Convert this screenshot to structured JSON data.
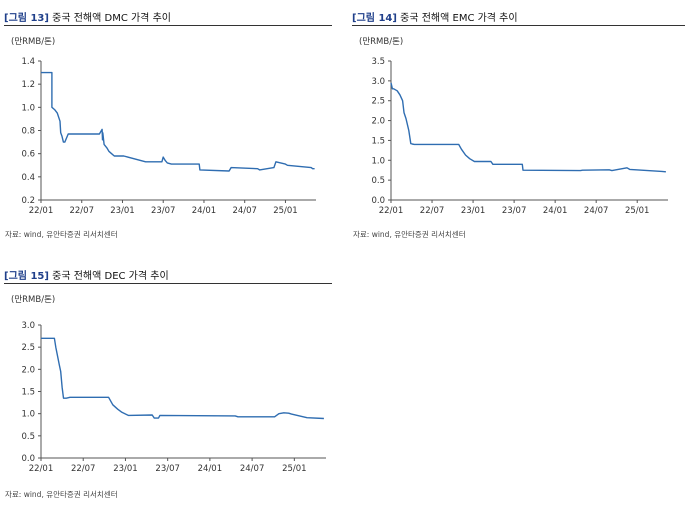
{
  "colors": {
    "line": "#2f6db1",
    "axis": "#555555",
    "title_tag": "#1f3f8a"
  },
  "chart_data": [
    {
      "type": "line",
      "fig_tag": "[그림 13]",
      "title": "중국 전해액 DMC 가격 추이",
      "unit": "(만RMB/톤)",
      "source": "자료: wind, 유안타증권 리서치센터",
      "x_ticks": [
        "22/01",
        "22/07",
        "23/01",
        "23/07",
        "24/01",
        "24/07",
        "25/01"
      ],
      "y_ticks": [
        "0.2",
        "0.4",
        "0.6",
        "0.8",
        "1.0",
        "1.2",
        "1.4"
      ],
      "ylim": [
        0.2,
        1.4
      ],
      "xlim": [
        0,
        40.5
      ],
      "grid": false,
      "series": [
        {
          "x": [
            0,
            1.6,
            1.6,
            2.0,
            2.4,
            2.8,
            2.9,
            3.1,
            3.3,
            3.5,
            4.0,
            4.6,
            8.6,
            9.0,
            9.05,
            9.1,
            9.3,
            9.7,
            10.0,
            10.4,
            10.8,
            11.3,
            12.2,
            15.4,
            15.5,
            17.8,
            18.0,
            18.3,
            18.6,
            19.2,
            23.3,
            23.4,
            27.7,
            28.0,
            31.9,
            32.2,
            34.3,
            34.6,
            36.0,
            36.3,
            39.8,
            40.0,
            40.3
          ],
          "y": [
            1.3,
            1.3,
            1.0,
            0.98,
            0.95,
            0.88,
            0.78,
            0.75,
            0.7,
            0.7,
            0.77,
            0.77,
            0.77,
            0.81,
            0.72,
            0.78,
            0.68,
            0.65,
            0.62,
            0.6,
            0.58,
            0.58,
            0.58,
            0.53,
            0.53,
            0.53,
            0.57,
            0.54,
            0.52,
            0.51,
            0.51,
            0.46,
            0.45,
            0.48,
            0.47,
            0.46,
            0.48,
            0.53,
            0.51,
            0.5,
            0.48,
            0.47,
            0.47
          ]
        }
      ]
    },
    {
      "type": "line",
      "fig_tag": "[그림 14]",
      "title": "중국 전해액 EMC 가격 추이",
      "unit": "(만RMB/톤)",
      "source": "자료: wind, 유안타증권 리서치센터",
      "x_ticks": [
        "22/01",
        "22/07",
        "23/01",
        "23/07",
        "24/01",
        "24/07",
        "25/01"
      ],
      "y_ticks": [
        "0.0",
        "0.5",
        "1.0",
        "1.5",
        "2.0",
        "2.5",
        "3.0",
        "3.5"
      ],
      "ylim": [
        0.0,
        3.5
      ],
      "xlim": [
        0,
        40.5
      ],
      "grid": false,
      "series": [
        {
          "x": [
            0,
            0.2,
            0.4,
            0.9,
            1.3,
            1.7,
            1.9,
            2.2,
            2.6,
            2.9,
            3.1,
            3.4,
            9.9,
            10.3,
            10.9,
            11.5,
            12.2,
            14.6,
            14.9,
            19.2,
            19.3,
            27.7,
            28.0,
            31.9,
            32.3,
            34.5,
            34.9,
            35.8,
            39.6,
            40.2
          ],
          "y": [
            2.95,
            2.8,
            2.8,
            2.75,
            2.65,
            2.5,
            2.2,
            2.05,
            1.75,
            1.42,
            1.41,
            1.4,
            1.4,
            1.28,
            1.13,
            1.04,
            0.97,
            0.97,
            0.9,
            0.9,
            0.75,
            0.74,
            0.75,
            0.76,
            0.74,
            0.81,
            0.77,
            0.76,
            0.72,
            0.71
          ]
        }
      ]
    },
    {
      "type": "line",
      "fig_tag": "[그림 15]",
      "title": "중국 전해액 DEC 가격 추이",
      "unit": "(만RMB/톤)",
      "source": "자료: wind, 유안타증권 리서치센터",
      "x_ticks": [
        "22/01",
        "22/07",
        "23/01",
        "23/07",
        "24/01",
        "24/07",
        "25/01"
      ],
      "y_ticks": [
        "0.0",
        "0.5",
        "1.0",
        "1.5",
        "2.0",
        "2.5",
        "3.0"
      ],
      "ylim": [
        0.0,
        3.0
      ],
      "xlim": [
        0,
        40.5
      ],
      "grid": false,
      "series": [
        {
          "x": [
            0,
            1.9,
            2.1,
            2.6,
            2.8,
            3.0,
            3.2,
            3.6,
            3.9,
            4.1,
            9.6,
            10.2,
            10.9,
            11.5,
            12.4,
            15.8,
            16.1,
            16.7,
            16.9,
            27.6,
            28.0,
            33.2,
            33.8,
            34.5,
            35.2,
            35.6,
            37.8,
            40.2
          ],
          "y": [
            2.7,
            2.7,
            2.5,
            2.1,
            1.95,
            1.6,
            1.35,
            1.35,
            1.36,
            1.37,
            1.37,
            1.2,
            1.1,
            1.03,
            0.96,
            0.97,
            0.9,
            0.9,
            0.96,
            0.95,
            0.93,
            0.93,
            1.0,
            1.02,
            1.01,
            0.99,
            0.91,
            0.89
          ]
        }
      ]
    }
  ]
}
